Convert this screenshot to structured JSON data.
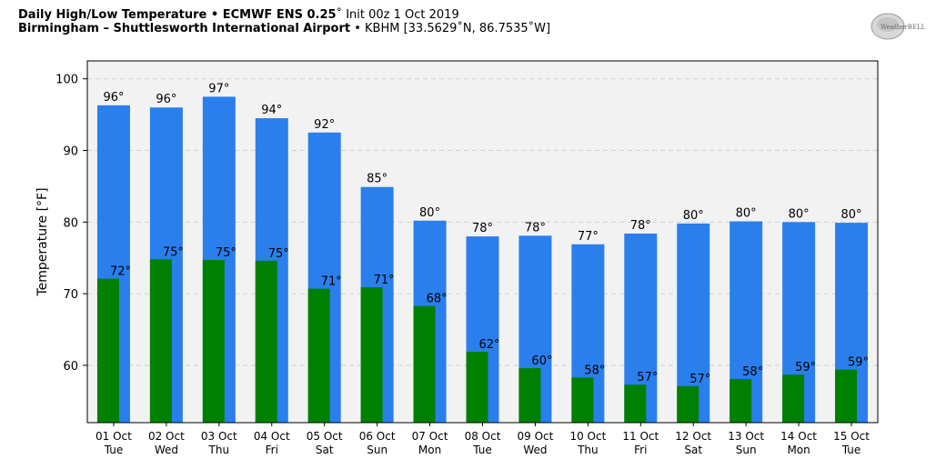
{
  "header": {
    "title_bold": "Daily High/Low Temperature • ECMWF ENS 0.25",
    "title_deg": "˚",
    "title_rest": " Init 00z 1 Oct 2019",
    "subtitle_bold": "Birmingham – Shuttlesworth International Airport",
    "subtitle_rest": " • KBHM [33.5629˚N, 86.7535˚W]"
  },
  "logo": {
    "text": "WeatherBELL"
  },
  "chart_data": {
    "type": "bar",
    "ylabel": "Temperature [°F]",
    "ylim": [
      52,
      102.5
    ],
    "yticks": [
      60,
      70,
      80,
      90,
      100
    ],
    "grid": true,
    "categories": [
      [
        "01 Oct",
        "Tue"
      ],
      [
        "02 Oct",
        "Wed"
      ],
      [
        "03 Oct",
        "Thu"
      ],
      [
        "04 Oct",
        "Fri"
      ],
      [
        "05 Oct",
        "Sat"
      ],
      [
        "06 Oct",
        "Sun"
      ],
      [
        "07 Oct",
        "Mon"
      ],
      [
        "08 Oct",
        "Tue"
      ],
      [
        "09 Oct",
        "Wed"
      ],
      [
        "10 Oct",
        "Thu"
      ],
      [
        "11 Oct",
        "Fri"
      ],
      [
        "12 Oct",
        "Sat"
      ],
      [
        "13 Oct",
        "Sun"
      ],
      [
        "14 Oct",
        "Mon"
      ],
      [
        "15 Oct",
        "Tue"
      ]
    ],
    "series": [
      {
        "label": "high",
        "color": "#2a7fed",
        "values": [
          96.3,
          96.0,
          97.5,
          94.5,
          92.5,
          84.9,
          80.2,
          78.0,
          78.1,
          76.9,
          78.4,
          79.8,
          80.1,
          80.0,
          79.9
        ],
        "labels": [
          "96°",
          "96°",
          "97°",
          "94°",
          "92°",
          "85°",
          "80°",
          "78°",
          "78°",
          "77°",
          "78°",
          "80°",
          "80°",
          "80°",
          "80°"
        ]
      },
      {
        "label": "low",
        "color": "#008000",
        "values": [
          72.1,
          74.8,
          74.7,
          74.6,
          70.7,
          70.9,
          68.3,
          61.9,
          59.6,
          58.3,
          57.3,
          57.1,
          58.1,
          58.7,
          59.4
        ],
        "labels": [
          "72°",
          "75°",
          "75°",
          "75°",
          "71°",
          "71°",
          "68°",
          "62°",
          "60°",
          "58°",
          "57°",
          "57°",
          "58°",
          "59°",
          "59°"
        ]
      }
    ]
  }
}
